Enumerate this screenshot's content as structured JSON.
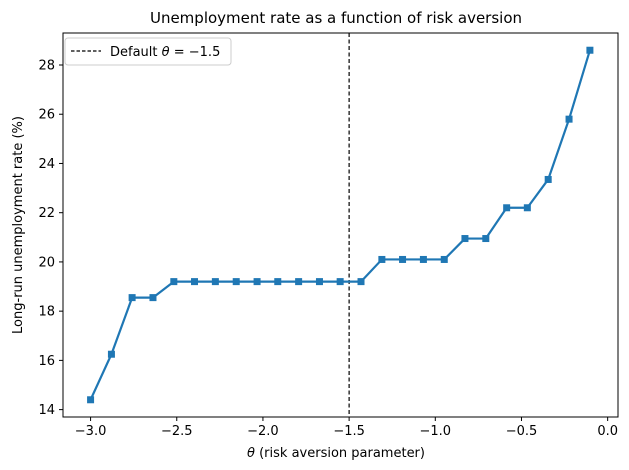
{
  "chart_data": {
    "type": "line",
    "title": "Unemployment rate as a function of risk aversion",
    "xlabel_symbol": "θ",
    "xlabel_rest": " (risk aversion parameter)",
    "ylabel": "Long-run unemployment rate (%)",
    "xlim": [
      -3.16,
      0.06
    ],
    "ylim": [
      13.7,
      29.3
    ],
    "xticks": [
      -3.0,
      -2.5,
      -2.0,
      -1.5,
      -1.0,
      -0.5,
      0.0
    ],
    "xtick_labels": [
      "−3.0",
      "−2.5",
      "−2.0",
      "−1.5",
      "−1.0",
      "−0.5",
      "0.0"
    ],
    "yticks": [
      14,
      16,
      18,
      20,
      22,
      24,
      26,
      28
    ],
    "ytick_labels": [
      "14",
      "16",
      "18",
      "20",
      "22",
      "24",
      "26",
      "28"
    ],
    "grid": false,
    "series": [
      {
        "color": "#1f77b4",
        "marker": "square",
        "x": [
          -3.0,
          -2.879,
          -2.759,
          -2.638,
          -2.517,
          -2.397,
          -2.276,
          -2.155,
          -2.034,
          -1.914,
          -1.793,
          -1.672,
          -1.552,
          -1.431,
          -1.31,
          -1.19,
          -1.069,
          -0.948,
          -0.828,
          -0.707,
          -0.586,
          -0.466,
          -0.345,
          -0.224,
          -0.103
        ],
        "y": [
          14.4,
          16.25,
          18.55,
          18.55,
          19.2,
          19.2,
          19.2,
          19.2,
          19.2,
          19.2,
          19.2,
          19.2,
          19.2,
          19.2,
          20.1,
          20.1,
          20.1,
          20.1,
          20.95,
          20.95,
          22.2,
          22.2,
          23.35,
          25.8,
          28.6
        ]
      }
    ],
    "reference_line": {
      "x": -1.5,
      "color": "#000000",
      "style": "dashed"
    },
    "legend": {
      "placement": "top-left",
      "entry_prefix": "Default ",
      "entry_symbol": "θ",
      "entry_suffix": " = −1.5"
    }
  }
}
